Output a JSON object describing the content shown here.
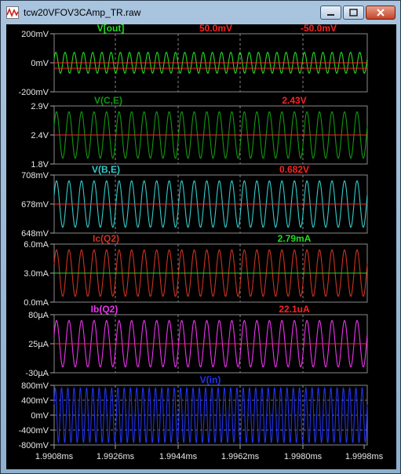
{
  "window": {
    "title": "tcw20VFOV3CAmp_TR.raw",
    "controls": [
      "minimize",
      "maximize",
      "close"
    ]
  },
  "x_axis": {
    "ticks": [
      "1.9908ms",
      "1.9926ms",
      "1.9944ms",
      "1.9962ms",
      "1.9980ms",
      "1.9998ms"
    ]
  },
  "panes": [
    {
      "id": "vout",
      "title": "V[out]",
      "color": "#22dd22",
      "cursor_values": [
        {
          "text": "50.0mV",
          "color": "#ff2222"
        },
        {
          "text": "-50.0mV",
          "color": "#ff2222"
        }
      ],
      "y_ticks": [
        "200mV",
        "0mV",
        "-200mV"
      ],
      "center": 0,
      "amplitude": 50,
      "cycles": 34,
      "center_line_color": "#ff2222"
    },
    {
      "id": "vce",
      "title": "V(C,E)",
      "color": "#119911",
      "cursor_values": [
        {
          "text": "2.43V",
          "color": "#ff2222"
        }
      ],
      "y_ticks": [
        "2.9V",
        "2.4V",
        "1.8V"
      ],
      "center": 2.4,
      "amplitude": 0.4,
      "cycles": 25,
      "center_line_color": "#ff2222"
    },
    {
      "id": "vbe",
      "title": "V(B,E)",
      "color": "#33cccc",
      "cursor_values": [
        {
          "text": "0.682V",
          "color": "#ff2222"
        }
      ],
      "y_ticks": [
        "708mV",
        "678mV",
        "648mV"
      ],
      "center": 678,
      "amplitude": 25,
      "cycles": 25,
      "center_line_color": "#ff2222"
    },
    {
      "id": "icq2",
      "title": "Ic(Q2)",
      "color": "#cc3322",
      "cursor_values": [
        {
          "text": "2.79mA",
          "color": "#22dd22"
        }
      ],
      "y_ticks": [
        "6.0mA",
        "3.0mA",
        "0.0mA"
      ],
      "center": 3.0,
      "amplitude": 2.6,
      "cycles": 25,
      "center_line_color": "#22dd22"
    },
    {
      "id": "ibq2",
      "title": "Ib(Q2)",
      "color": "#ee33ee",
      "cursor_values": [
        {
          "text": "22.1uA",
          "color": "#ff2222"
        }
      ],
      "y_ticks": [
        "80µA",
        "25µA",
        "-30µA"
      ],
      "center": 25,
      "amplitude": 50,
      "cycles": 25,
      "center_line_color": "#ff2222"
    },
    {
      "id": "vin",
      "title": "V(in)",
      "color": "#2233ee",
      "cursor_values": [],
      "y_ticks": [
        "800mV",
        "400mV",
        "0mV",
        "-400mV",
        "-800mV"
      ],
      "center": 0,
      "amplitude": 800,
      "cycles": 50,
      "center_line_color": null
    }
  ]
}
